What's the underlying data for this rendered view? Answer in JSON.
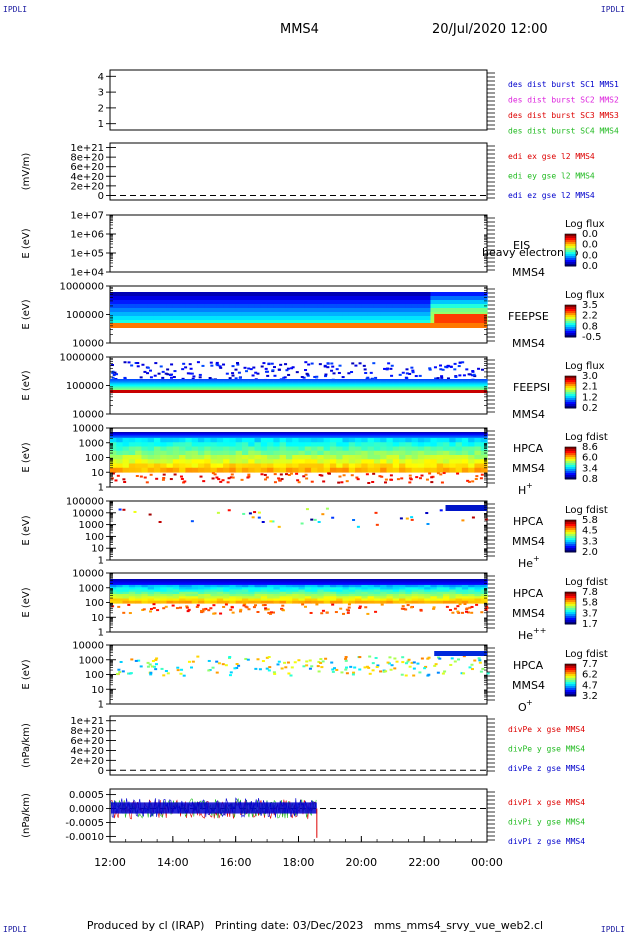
{
  "header": {
    "corner_label": "IPDLI",
    "spacecraft": "MMS4",
    "date_time": "20/Jul/2020 12:00"
  },
  "footer": {
    "credit": "Produced by cl (IRAP)   Printing date: 03/Dec/2023   mms_mms4_srvy_vue_web2.cl"
  },
  "time_axis": {
    "ticks": [
      "12:00",
      "14:00",
      "16:00",
      "18:00",
      "20:00",
      "22:00",
      "00:00"
    ]
  },
  "colors": {
    "red": "#dd0000",
    "green": "#22bb22",
    "blue": "#0000cc",
    "magenta": "#dd22dd",
    "grey_tick": "#666666"
  },
  "chart_data": [
    {
      "id": "dist",
      "type": "line",
      "ylabel": "",
      "yticks": [
        "1",
        "2",
        "3",
        "4"
      ],
      "ylim": [
        0.6,
        4.4
      ],
      "legend": [
        {
          "text": "des dist burst SC1 MMS1",
          "color": "blue"
        },
        {
          "text": "des dist burst SC2 MMS2",
          "color": "magenta"
        },
        {
          "text": "des dist burst SC3 MMS3",
          "color": "red"
        },
        {
          "text": "des dist burst SC4 MMS4",
          "color": "green"
        }
      ]
    },
    {
      "id": "edi",
      "type": "line",
      "ylabel": "(mV/m)",
      "yticks": [
        "0",
        "2e+20",
        "4e+20",
        "6e+20",
        "8e+20",
        "1e+21"
      ],
      "zero_line": true,
      "legend": [
        {
          "text": "edi ex gse l2 MMS4",
          "color": "red"
        },
        {
          "text": "edi ey gse l2 MMS4",
          "color": "green"
        },
        {
          "text": "edi ez gse l2 MMS4",
          "color": "blue"
        }
      ]
    },
    {
      "id": "eis",
      "type": "heatmap",
      "ylabel": "E (eV)",
      "yticks": [
        "1e+04",
        "1e+05",
        "1e+06",
        "1e+07"
      ],
      "yscale": "log",
      "instrument": [
        "EIS",
        "MMS4"
      ],
      "overlay": "heavy electron to",
      "colorbar": {
        "title": "Log flux",
        "ticks": [
          "0.0",
          "0.0",
          "0.0",
          "0.0"
        ]
      }
    },
    {
      "id": "feepse",
      "type": "heatmap",
      "ylabel": "E (eV)",
      "yticks": [
        "10000",
        "100000",
        "1000000"
      ],
      "yscale": "log",
      "instrument": [
        "FEEPSE",
        "MMS4"
      ],
      "colorbar": {
        "title": "Log flux",
        "ticks": [
          "3.5",
          "2.2",
          "0.8",
          "-0.5"
        ]
      }
    },
    {
      "id": "feepsi",
      "type": "heatmap",
      "ylabel": "E (eV)",
      "yticks": [
        "10000",
        "100000",
        "1000000"
      ],
      "yscale": "log",
      "instrument": [
        "FEEPSI",
        "MMS4"
      ],
      "colorbar": {
        "title": "Log flux",
        "ticks": [
          "3.0",
          "2.1",
          "1.2",
          "0.2"
        ]
      }
    },
    {
      "id": "hpca_h",
      "type": "heatmap",
      "ylabel": "E (eV)",
      "yticks": [
        "1",
        "10",
        "100",
        "1000",
        "10000"
      ],
      "yscale": "log",
      "instrument": [
        "HPCA",
        "MMS4"
      ],
      "species": "H",
      "charge": "+",
      "colorbar": {
        "title": "Log fdist",
        "ticks": [
          "8.6",
          "6.0",
          "3.4",
          "0.8"
        ]
      }
    },
    {
      "id": "hpca_he",
      "type": "heatmap",
      "ylabel": "E (eV)",
      "yticks": [
        "1",
        "10",
        "100",
        "1000",
        "10000",
        "100000"
      ],
      "yscale": "log",
      "instrument": [
        "HPCA",
        "MMS4"
      ],
      "species": "He",
      "charge": "+",
      "colorbar": {
        "title": "Log fdist",
        "ticks": [
          "5.8",
          "4.5",
          "3.3",
          "2.0"
        ]
      }
    },
    {
      "id": "hpca_he2",
      "type": "heatmap",
      "ylabel": "E (eV)",
      "yticks": [
        "1",
        "10",
        "100",
        "1000",
        "10000"
      ],
      "yscale": "log",
      "instrument": [
        "HPCA",
        "MMS4"
      ],
      "species": "He",
      "charge": "++",
      "colorbar": {
        "title": "Log fdist",
        "ticks": [
          "7.8",
          "5.8",
          "3.7",
          "1.7"
        ]
      }
    },
    {
      "id": "hpca_o",
      "type": "heatmap",
      "ylabel": "E (eV)",
      "yticks": [
        "1",
        "10",
        "100",
        "1000",
        "10000"
      ],
      "yscale": "log",
      "instrument": [
        "HPCA",
        "MMS4"
      ],
      "species": "O",
      "charge": "+",
      "colorbar": {
        "title": "Log fdist",
        "ticks": [
          "7.7",
          "6.2",
          "4.7",
          "3.2"
        ]
      }
    },
    {
      "id": "divpe",
      "type": "line",
      "ylabel": "(nPa/km)",
      "yticks": [
        "0",
        "2e+20",
        "4e+20",
        "6e+20",
        "8e+20",
        "1e+21"
      ],
      "zero_line": true,
      "legend": [
        {
          "text": "divPe x gse MMS4",
          "color": "red"
        },
        {
          "text": "divPe y gse MMS4",
          "color": "green"
        },
        {
          "text": "divPe z gse MMS4",
          "color": "blue"
        }
      ]
    },
    {
      "id": "divpi",
      "type": "line",
      "ylabel": "(nPa/km)",
      "yticks": [
        "-0.0010",
        "-0.0005",
        "0.0000",
        "0.0005"
      ],
      "ylim": [
        -0.0012,
        0.0007
      ],
      "zero_line": true,
      "data_end_time": "18:35",
      "legend": [
        {
          "text": "divPi x gse MMS4",
          "color": "red"
        },
        {
          "text": "divPi y gse MMS4",
          "color": "green"
        },
        {
          "text": "divPi z gse MMS4",
          "color": "blue"
        }
      ]
    }
  ]
}
